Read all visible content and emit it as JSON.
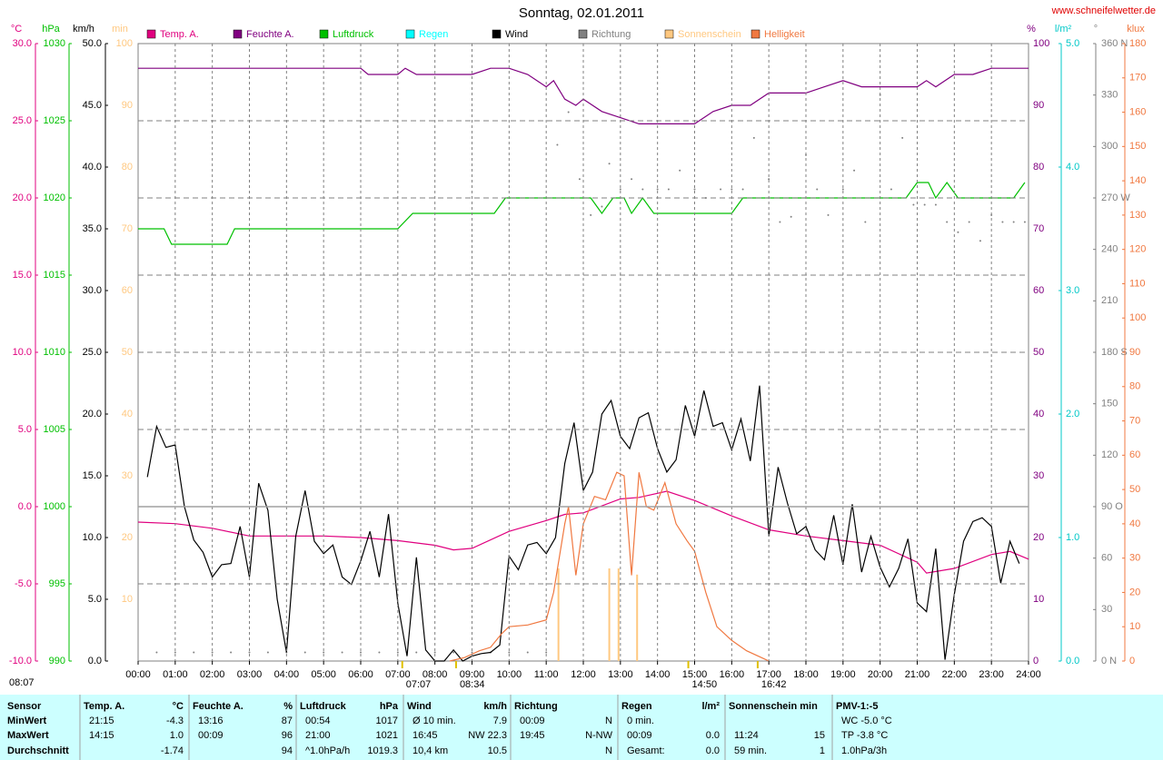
{
  "site": "www.schneifelwetter.de",
  "chart_data": {
    "type": "multi-axis",
    "title": "Sonntag, 02.01.2011",
    "xlim": [
      0,
      24
    ],
    "xticks": [
      {
        "value": 0,
        "label": "00:00"
      },
      {
        "value": 1,
        "label": "01:00"
      },
      {
        "value": 2,
        "label": "02:00"
      },
      {
        "value": 3,
        "label": "03:00"
      },
      {
        "value": 4,
        "label": "04:00"
      },
      {
        "value": 5,
        "label": "05:00"
      },
      {
        "value": 6,
        "label": "06:00"
      },
      {
        "value": 7,
        "label": "07:00"
      },
      {
        "value": 8,
        "label": "08:00"
      },
      {
        "value": 9,
        "label": "09:00"
      },
      {
        "value": 10,
        "label": "10:00"
      },
      {
        "value": 11,
        "label": "11:00"
      },
      {
        "value": 12,
        "label": "12:00"
      },
      {
        "value": 13,
        "label": "13:00"
      },
      {
        "value": 14,
        "label": "14:00"
      },
      {
        "value": 15,
        "label": "15:00"
      },
      {
        "value": 16,
        "label": "16:00"
      },
      {
        "value": 17,
        "label": "17:00"
      },
      {
        "value": 18,
        "label": "18:00"
      },
      {
        "value": 19,
        "label": "19:00"
      },
      {
        "value": 20,
        "label": "20:00"
      },
      {
        "value": 21,
        "label": "21:00"
      },
      {
        "value": 22,
        "label": "22:00"
      },
      {
        "value": 23,
        "label": "23:00"
      },
      {
        "value": 24,
        "label": "24:00"
      }
    ],
    "grid": true,
    "grid_axis": 0,
    "axes": [
      {
        "unit": "°C",
        "color": "#e0007f",
        "lim": [
          -10,
          30
        ],
        "ticks": [
          {
            "value": 30,
            "label": "30.0"
          },
          {
            "value": 25,
            "label": "25.0"
          },
          {
            "value": 20,
            "label": "20.0"
          },
          {
            "value": 15,
            "label": "15.0"
          },
          {
            "value": 10,
            "label": "10.0"
          },
          {
            "value": 5,
            "label": "5.0"
          },
          {
            "value": 0,
            "label": "0.0"
          },
          {
            "value": -5,
            "label": "-5.0"
          },
          {
            "value": -10,
            "label": "-10.0"
          }
        ]
      },
      {
        "unit": "hPa",
        "color": "#00c000",
        "lim": [
          990,
          1030
        ],
        "ticks": [
          1030,
          1025,
          1020,
          1015,
          1010,
          1005,
          1000,
          995,
          990
        ]
      },
      {
        "unit": "km/h",
        "color": "#000000",
        "lim": [
          0,
          50
        ],
        "ticks": [
          {
            "value": 50,
            "label": "50.0"
          },
          {
            "value": 45,
            "label": "45.0"
          },
          {
            "value": 40,
            "label": "40.0"
          },
          {
            "value": 35,
            "label": "35.0"
          },
          {
            "value": 30,
            "label": "30.0"
          },
          {
            "value": 25,
            "label": "25.0"
          },
          {
            "value": 20,
            "label": "20.0"
          },
          {
            "value": 15,
            "label": "15.0"
          },
          {
            "value": 10,
            "label": "10.0"
          },
          {
            "value": 5,
            "label": "5.0"
          },
          {
            "value": 0,
            "label": "0.0"
          }
        ]
      },
      {
        "unit": "min",
        "color": "#ffc880",
        "lim": [
          0,
          100
        ],
        "ticks": [
          100,
          90,
          80,
          70,
          60,
          50,
          40,
          30,
          20,
          10
        ]
      },
      {
        "unit": "%",
        "color": "#800080",
        "lim": [
          0,
          100
        ],
        "ticks": [
          100,
          90,
          80,
          70,
          60,
          50,
          40,
          30,
          20,
          10,
          0
        ]
      },
      {
        "unit": "l/m²",
        "color": "#00c8c8",
        "lim": [
          0,
          5
        ],
        "ticks": [
          {
            "value": 5,
            "label": "5.0"
          },
          {
            "value": 4,
            "label": "4.0"
          },
          {
            "value": 3,
            "label": "3.0"
          },
          {
            "value": 2,
            "label": "2.0"
          },
          {
            "value": 1,
            "label": "1.0"
          },
          {
            "value": 0,
            "label": "0.0"
          }
        ]
      },
      {
        "unit": "°",
        "color": "#808080",
        "lim": [
          0,
          360
        ],
        "ticks": [
          {
            "value": 360,
            "label": "360 N"
          },
          330,
          300,
          {
            "value": 270,
            "label": "270 W"
          },
          240,
          210,
          {
            "value": 180,
            "label": "180 S"
          },
          150,
          120,
          {
            "value": 90,
            "label": "90 O"
          },
          60,
          30,
          {
            "value": 0,
            "label": "0 N"
          }
        ]
      },
      {
        "unit": "klux",
        "color": "#f07840",
        "lim": [
          0,
          180
        ],
        "ticks": [
          180,
          170,
          160,
          150,
          140,
          130,
          120,
          110,
          100,
          90,
          80,
          70,
          60,
          50,
          40,
          30,
          20,
          10,
          0
        ]
      }
    ],
    "series": [
      {
        "name": "Temp. A.",
        "color": "#e0007f",
        "style": "line",
        "axis": 0,
        "x": [
          0,
          1,
          2,
          3,
          4,
          5,
          6,
          7,
          8,
          8.5,
          9,
          10,
          11,
          11.5,
          12,
          13,
          13.5,
          14.25,
          15,
          16,
          17,
          18,
          19,
          20,
          21,
          21.25,
          22,
          23,
          23.5,
          24
        ],
        "values": [
          -1.0,
          -1.1,
          -1.4,
          -1.9,
          -1.9,
          -1.9,
          -2.0,
          -2.2,
          -2.5,
          -2.8,
          -2.7,
          -1.6,
          -0.9,
          -0.5,
          -0.4,
          0.5,
          0.6,
          1.0,
          0.4,
          -0.6,
          -1.5,
          -1.9,
          -2.2,
          -2.5,
          -3.6,
          -4.3,
          -4.0,
          -3.1,
          -2.9,
          -3.4
        ]
      },
      {
        "name": "Feuchte A.",
        "color": "#800080",
        "style": "line",
        "axis": 4,
        "x": [
          0,
          6,
          6.2,
          7,
          7.2,
          7.5,
          9,
          9.5,
          10,
          10.5,
          11,
          11.2,
          11.5,
          11.8,
          12,
          12.5,
          13,
          13.5,
          14,
          15,
          15.5,
          16,
          16.5,
          17,
          18,
          18.5,
          19,
          19.5,
          20,
          21,
          21.25,
          21.5,
          22,
          22.5,
          23,
          24
        ],
        "values": [
          96,
          96,
          95,
          95,
          96,
          95,
          95,
          96,
          96,
          95,
          93,
          94,
          91,
          90,
          91,
          89,
          88,
          87,
          87,
          87,
          89,
          90,
          90,
          92,
          92,
          93,
          94,
          93,
          93,
          93,
          94,
          93,
          95,
          95,
          96,
          96
        ]
      },
      {
        "name": "Luftdruck",
        "color": "#00c000",
        "style": "line",
        "axis": 1,
        "x": [
          0,
          0.7,
          0.9,
          2.4,
          2.6,
          7.0,
          7.4,
          9.6,
          9.9,
          12.2,
          12.5,
          12.8,
          13.1,
          13.3,
          13.6,
          13.9,
          16.0,
          16.3,
          20.7,
          21.0,
          21.3,
          21.5,
          21.8,
          22.1,
          23.6,
          23.9
        ],
        "values": [
          1018,
          1018,
          1017,
          1017,
          1018,
          1018,
          1019,
          1019,
          1020,
          1020,
          1019,
          1020,
          1020,
          1019,
          1020,
          1019,
          1019,
          1020,
          1020,
          1021,
          1021,
          1020,
          1021,
          1020,
          1020,
          1021
        ]
      },
      {
        "name": "Regen",
        "color": "#00ffff",
        "style": "line",
        "axis": 5,
        "x": [],
        "values": []
      },
      {
        "name": "Wind",
        "color": "#000000",
        "style": "line",
        "axis": 2,
        "x": [
          0.25,
          0.5,
          0.75,
          1,
          1.25,
          1.5,
          1.75,
          2,
          2.25,
          2.5,
          2.75,
          3,
          3.25,
          3.5,
          3.75,
          4,
          4.25,
          4.5,
          4.75,
          5,
          5.25,
          5.5,
          5.75,
          6,
          6.25,
          6.5,
          6.75,
          7,
          7.25,
          7.5,
          7.75,
          8,
          8.25,
          8.5,
          8.75,
          9,
          9.25,
          9.5,
          9.75,
          10,
          10.25,
          10.5,
          10.75,
          11,
          11.25,
          11.5,
          11.75,
          12,
          12.25,
          12.5,
          12.75,
          13,
          13.25,
          13.5,
          13.75,
          14,
          14.25,
          14.5,
          14.75,
          15,
          15.25,
          15.5,
          15.75,
          16,
          16.25,
          16.5,
          16.75,
          17,
          17.25,
          17.5,
          17.75,
          18,
          18.25,
          18.5,
          18.75,
          19,
          19.25,
          19.5,
          19.75,
          20,
          20.25,
          20.5,
          20.75,
          21,
          21.25,
          21.5,
          21.75,
          22,
          22.25,
          22.5,
          22.75,
          23,
          23.25,
          23.5,
          23.75
        ],
        "values": [
          14.9,
          19.0,
          17.3,
          17.5,
          12.5,
          9.8,
          8.8,
          6.8,
          7.8,
          7.9,
          10.9,
          6.8,
          14.4,
          12.2,
          5.0,
          0.7,
          10.1,
          13.8,
          9.7,
          8.7,
          9.4,
          6.8,
          6.2,
          8.1,
          10.5,
          6.8,
          11.9,
          4.7,
          0.4,
          8.4,
          0.9,
          0,
          0,
          0.9,
          0,
          0.4,
          0.6,
          0.7,
          1.3,
          8.5,
          7.4,
          9.4,
          9.6,
          8.7,
          10.0,
          16.0,
          19.3,
          13.8,
          15.3,
          20.0,
          21.1,
          18.2,
          17.2,
          19.7,
          20.1,
          17.2,
          15.3,
          16.3,
          20.7,
          18.2,
          21.9,
          19.0,
          19.3,
          17.1,
          19.6,
          16.2,
          22.3,
          10.1,
          15.7,
          12.8,
          10.3,
          10.9,
          9.0,
          8.2,
          11.8,
          7.8,
          12.7,
          7.2,
          10.1,
          7.6,
          6.0,
          7.5,
          9.9,
          4.7,
          4.0,
          9.1,
          0.1,
          5.4,
          9.7,
          11.3,
          11.6,
          10.9,
          6.3,
          9.7,
          7.9
        ]
      },
      {
        "name": "Richtung",
        "color": "#808080",
        "style": "dots",
        "axis": 6,
        "x": [
          0.5,
          1,
          1.5,
          2,
          2.5,
          3,
          3.5,
          4,
          4.5,
          5,
          5.5,
          6,
          6.5,
          7,
          7.5,
          8,
          8.5,
          9,
          9.5,
          10,
          10.5,
          11,
          11.3,
          11.6,
          11.9,
          12.2,
          12.5,
          12.7,
          13.0,
          13.3,
          13.6,
          14.0,
          14.3,
          14.6,
          15.0,
          15.3,
          15.7,
          16.0,
          16.3,
          16.6,
          17.0,
          17.3,
          17.6,
          18.0,
          18.3,
          18.6,
          19.0,
          19.3,
          19.6,
          20.0,
          20.3,
          20.6,
          20.9,
          21.2,
          21.5,
          21.8,
          22.1,
          22.4,
          22.7,
          23.0,
          23.3,
          23.6,
          23.9
        ],
        "values": [
          5,
          5,
          5,
          5,
          5,
          5,
          5,
          5,
          5,
          5,
          5,
          5,
          5,
          5,
          5,
          5,
          5,
          5,
          5,
          5,
          5,
          5,
          301,
          320,
          281,
          260,
          265,
          290,
          275,
          281,
          275,
          275,
          275,
          286,
          275,
          270,
          275,
          275,
          275,
          305,
          281,
          256,
          259,
          295,
          275,
          260,
          275,
          286,
          256,
          330,
          275,
          305,
          266,
          266,
          266,
          256,
          250,
          256,
          245,
          260,
          256,
          256,
          256
        ]
      },
      {
        "name": "Sonnenschein",
        "color": "#ffc880",
        "style": "bars",
        "axis": 3,
        "x": [
          11.33,
          12.7,
          12.95,
          13.45
        ],
        "values": [
          15,
          15,
          15,
          14
        ]
      },
      {
        "name": "Helligkeit",
        "color": "#f07840",
        "style": "line",
        "axis": 7,
        "x": [
          8.4,
          8.8,
          9.2,
          9.5,
          9.8,
          10.0,
          10.5,
          11.0,
          11.2,
          11.5,
          11.6,
          11.8,
          12.0,
          12.3,
          12.6,
          12.9,
          13.1,
          13.3,
          13.5,
          13.7,
          13.9,
          14.2,
          14.5,
          14.8,
          15.0,
          15.3,
          15.6,
          16.0,
          16.4,
          16.8,
          17.0
        ],
        "values": [
          0,
          1,
          3,
          4,
          8,
          10,
          10.5,
          12,
          20,
          40,
          45,
          25,
          40,
          48,
          47,
          55,
          54,
          25,
          55,
          45,
          44,
          52,
          40,
          35,
          32,
          20,
          10,
          6,
          3,
          1,
          0
        ]
      }
    ],
    "day_length": "08:07",
    "annotations": [
      {
        "x": 7.12,
        "label": "07:07"
      },
      {
        "x": 8.57,
        "label": "08:34"
      },
      {
        "x": 14.83,
        "label": "14:50"
      },
      {
        "x": 16.7,
        "label": "16:42"
      }
    ]
  },
  "table": {
    "groups": [
      {
        "title": "Sensor",
        "rows": [
          {
            "left": "MinWert"
          },
          {
            "left": "MaxWert"
          },
          {
            "left": "Durchschnitt"
          }
        ]
      },
      {
        "title": "Temp. A.",
        "unit": "°C",
        "rows": [
          {
            "left": "21:15",
            "right": "-4.3"
          },
          {
            "left": "14:15",
            "right": "1.0"
          },
          {
            "right": "-1.74"
          }
        ]
      },
      {
        "title": "Feuchte A.",
        "unit": "%",
        "rows": [
          {
            "left": "13:16",
            "right": "87"
          },
          {
            "left": "00:09",
            "right": "96"
          },
          {
            "right": "94"
          }
        ]
      },
      {
        "title": "Luftdruck",
        "unit": "hPa",
        "rows": [
          {
            "left": "00:54",
            "right": "1017"
          },
          {
            "left": "21:00",
            "right": "1021"
          },
          {
            "left": "^1.0hPa/h",
            "right": "1019.3"
          }
        ]
      },
      {
        "title": "Wind",
        "unit": "km/h",
        "rows": [
          {
            "left": "Ø 10 min.",
            "right": "7.9"
          },
          {
            "left": "16:45",
            "right": "NW 22.3"
          },
          {
            "left": "10,4 km",
            "right": "10.5"
          }
        ]
      },
      {
        "title": "Richtung",
        "rows": [
          {
            "left": "00:09",
            "right": "N"
          },
          {
            "left": "19:45",
            "right": "N-NW"
          },
          {
            "right": "N"
          }
        ]
      },
      {
        "title": "Regen",
        "unit": "l/m²",
        "rows": [
          {
            "left": "0 min."
          },
          {
            "left": "00:09",
            "right": "0.0"
          },
          {
            "left": "Gesamt:",
            "right": "0.0"
          }
        ]
      },
      {
        "title": "Sonnenschein min",
        "rows": [
          {},
          {
            "left": "11:24",
            "right": "15"
          },
          {
            "left": "59 min.",
            "right": "1"
          }
        ]
      },
      {
        "title": "PMV-1:-5",
        "rows": [
          {
            "left": "WC -5.0 °C"
          },
          {
            "left": "TP -3.8 °C"
          },
          {
            "left": "1.0hPa/3h"
          }
        ]
      }
    ]
  }
}
